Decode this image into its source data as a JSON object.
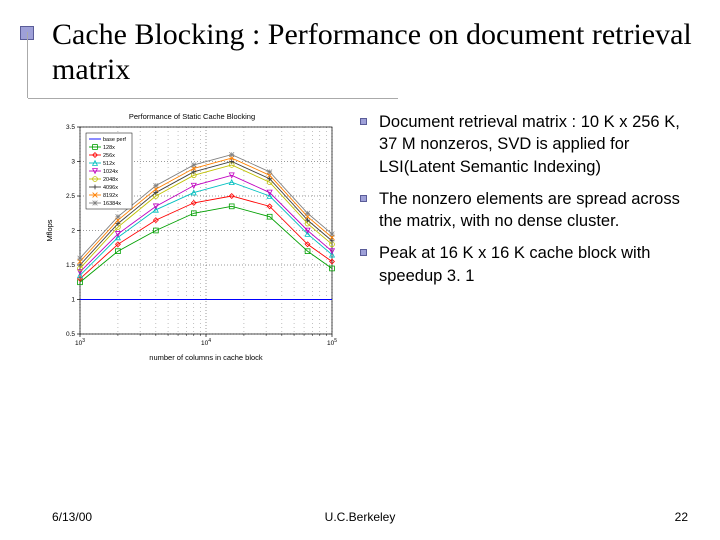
{
  "title": "Cache Blocking : Performance on document retrieval matrix",
  "bullets": [
    "Document retrieval matrix : 10 K x 256 K, 37 M nonzeros, SVD is applied for LSI(Latent Semantic Indexing)",
    "The nonzero elements are spread across the matrix, with no dense cluster.",
    "Peak at 16 K x 16 K cache block with speedup 3. 1"
  ],
  "footer": {
    "date": "6/13/00",
    "center": "U.C.Berkeley",
    "page": "22"
  },
  "chart": {
    "title": "Performance of Static Cache Blocking",
    "xlabel": "number of columns in cache block",
    "ylabel": "Mflops",
    "xscale": "log",
    "xlim": [
      1000,
      100000
    ],
    "xticks": [
      1000,
      10000,
      100000
    ],
    "xticklabels": [
      "10^3",
      "10^4",
      "10^5"
    ],
    "ylim": [
      0.5,
      3.5
    ],
    "yticks": [
      0.5,
      1,
      1.5,
      2,
      2.5,
      3,
      3.5
    ],
    "grid_color": "#000000",
    "grid_style": "dotted",
    "plot_bg": "#ffffff",
    "series": [
      {
        "label": "base perf",
        "color": "#0000ff",
        "marker": "none",
        "x": [
          1000,
          100000
        ],
        "y": [
          1.0,
          1.0
        ]
      },
      {
        "label": "128x",
        "color": "#00a000",
        "marker": "square",
        "x": [
          1000,
          2000,
          4000,
          8000,
          16000,
          32000,
          64000,
          100000
        ],
        "y": [
          1.25,
          1.7,
          2.0,
          2.25,
          2.35,
          2.2,
          1.7,
          1.45
        ]
      },
      {
        "label": "256x",
        "color": "#ff0000",
        "marker": "diamond",
        "x": [
          1000,
          2000,
          4000,
          8000,
          16000,
          32000,
          64000,
          100000
        ],
        "y": [
          1.3,
          1.8,
          2.15,
          2.4,
          2.5,
          2.35,
          1.8,
          1.55
        ]
      },
      {
        "label": "512x",
        "color": "#00c0c0",
        "marker": "triangle",
        "x": [
          1000,
          2000,
          4000,
          8000,
          16000,
          32000,
          64000,
          100000
        ],
        "y": [
          1.35,
          1.9,
          2.3,
          2.55,
          2.7,
          2.5,
          1.95,
          1.65
        ]
      },
      {
        "label": "1024x",
        "color": "#c000c0",
        "marker": "triangle-down",
        "x": [
          1000,
          2000,
          4000,
          8000,
          16000,
          32000,
          64000,
          100000
        ],
        "y": [
          1.4,
          1.95,
          2.35,
          2.65,
          2.8,
          2.55,
          2.0,
          1.7
        ]
      },
      {
        "label": "2048x",
        "color": "#c0c000",
        "marker": "circle",
        "x": [
          1000,
          2000,
          4000,
          8000,
          16000,
          32000,
          64000,
          100000
        ],
        "y": [
          1.45,
          2.05,
          2.5,
          2.8,
          2.95,
          2.7,
          2.1,
          1.8
        ]
      },
      {
        "label": "4096x",
        "color": "#404040",
        "marker": "plus",
        "x": [
          1000,
          2000,
          4000,
          8000,
          16000,
          32000,
          64000,
          100000
        ],
        "y": [
          1.5,
          2.1,
          2.55,
          2.85,
          3.0,
          2.75,
          2.15,
          1.85
        ]
      },
      {
        "label": "8192x",
        "color": "#ff8000",
        "marker": "x",
        "x": [
          1000,
          2000,
          4000,
          8000,
          16000,
          32000,
          64000,
          100000
        ],
        "y": [
          1.55,
          2.15,
          2.6,
          2.9,
          3.05,
          2.8,
          2.2,
          1.9
        ]
      },
      {
        "label": "16384x",
        "color": "#808080",
        "marker": "star",
        "x": [
          1000,
          2000,
          4000,
          8000,
          16000,
          32000,
          64000,
          100000
        ],
        "y": [
          1.6,
          2.2,
          2.65,
          2.95,
          3.1,
          2.85,
          2.25,
          1.95
        ]
      }
    ]
  }
}
